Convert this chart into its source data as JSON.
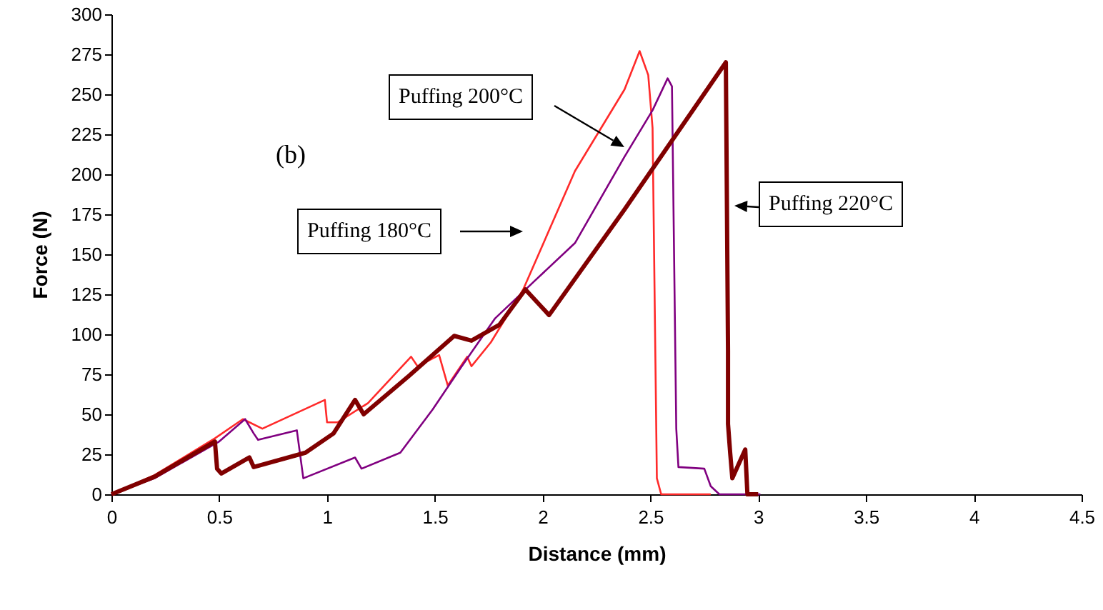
{
  "chart_data": {
    "type": "line",
    "xlabel": "Distance (mm)",
    "ylabel": "Force (N)",
    "xlim": [
      0,
      4.5
    ],
    "xticks": [
      0,
      0.5,
      1,
      1.5,
      2,
      2.5,
      3,
      3.5,
      4,
      4.5
    ],
    "ylim": [
      0,
      300
    ],
    "yticks": [
      0,
      25,
      50,
      75,
      100,
      125,
      150,
      175,
      200,
      225,
      250,
      275,
      300
    ],
    "grid": false,
    "marker": "none",
    "line_style": "solid",
    "annotations": [
      "(b)",
      "Puffing 180°C",
      "Puffing 200°C",
      "Puffing 220°C"
    ],
    "series": [
      {
        "color": "#ff2a2a",
        "x": [
          0,
          0.2,
          0.48,
          0.61,
          0.7,
          0.99,
          1.0,
          1.05,
          1.19,
          1.39,
          1.42,
          1.52,
          1.56,
          1.65,
          1.67,
          1.76,
          1.91,
          2.15,
          2.38,
          2.45,
          2.49,
          2.51,
          2.53,
          2.55,
          2.78
        ],
        "values": [
          0,
          12,
          35,
          47,
          41,
          59,
          45,
          45,
          57,
          86,
          80,
          87,
          68,
          86,
          80,
          95,
          128,
          202,
          253,
          277,
          262,
          229,
          10,
          0,
          0
        ]
      },
      {
        "color": "#800080",
        "x": [
          0,
          0.2,
          0.5,
          0.62,
          0.66,
          0.68,
          0.86,
          0.89,
          1.13,
          1.16,
          1.34,
          1.49,
          1.62,
          1.78,
          1.96,
          2.15,
          2.38,
          2.51,
          2.58,
          2.6,
          2.62,
          2.63,
          2.75,
          2.78,
          2.82,
          3.01
        ],
        "values": [
          0,
          10,
          33,
          47,
          38,
          34,
          40,
          10,
          23,
          16,
          26,
          53,
          79,
          110,
          133,
          157,
          211,
          240,
          260,
          255,
          41,
          17,
          16,
          5,
          0,
          0
        ]
      },
      {
        "color": "#800000",
        "x": [
          0,
          0.2,
          0.48,
          0.49,
          0.51,
          0.64,
          0.66,
          0.9,
          1.03,
          1.13,
          1.17,
          1.38,
          1.59,
          1.67,
          1.8,
          1.92,
          2.03,
          2.38,
          2.85,
          2.86,
          2.86,
          2.87,
          2.88,
          2.94,
          2.95,
          3.0
        ],
        "values": [
          0,
          11,
          33,
          16,
          13,
          23,
          17,
          26,
          38,
          59,
          50,
          74,
          99,
          96,
          106,
          128,
          112,
          178,
          270,
          90,
          44,
          26,
          10,
          28,
          0,
          0
        ]
      }
    ]
  }
}
